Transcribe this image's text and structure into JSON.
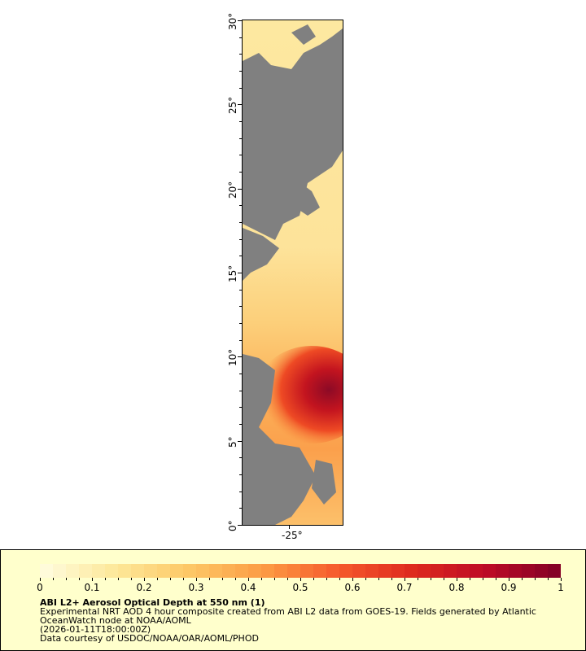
{
  "map": {
    "lat_ticks": [
      "0°",
      "5°",
      "10°",
      "15°",
      "20°",
      "25°",
      "30°"
    ],
    "lon_ticks": [
      "-25°"
    ],
    "lat_range": [
      0,
      30
    ],
    "land_nodata_color": "#808080"
  },
  "legend": {
    "colorbar_ticks": [
      "0",
      "0.1",
      "0.2",
      "0.3",
      "0.4",
      "0.5",
      "0.6",
      "0.7",
      "0.8",
      "0.9",
      "1"
    ],
    "range": [
      0,
      1
    ],
    "colormap": [
      "#fffde0",
      "#fde89a",
      "#fdc866",
      "#fc9c44",
      "#f65a2c",
      "#de2a1e",
      "#bd0b26",
      "#800026"
    ],
    "title": "ABI L2+ Aerosol Optical Depth at 550 nm (1)",
    "line1": "Experimental NRT AOD 4 hour composite created from ABI L2 data from GOES-19. Fields generated by Atlantic",
    "line2": "OceanWatch node at NOAA/AOML",
    "line3": "(2026-01-11T18:00:00Z)",
    "line4": "Data courtesy of USDOC/NOAA/OAR/AOML/PHOD"
  }
}
